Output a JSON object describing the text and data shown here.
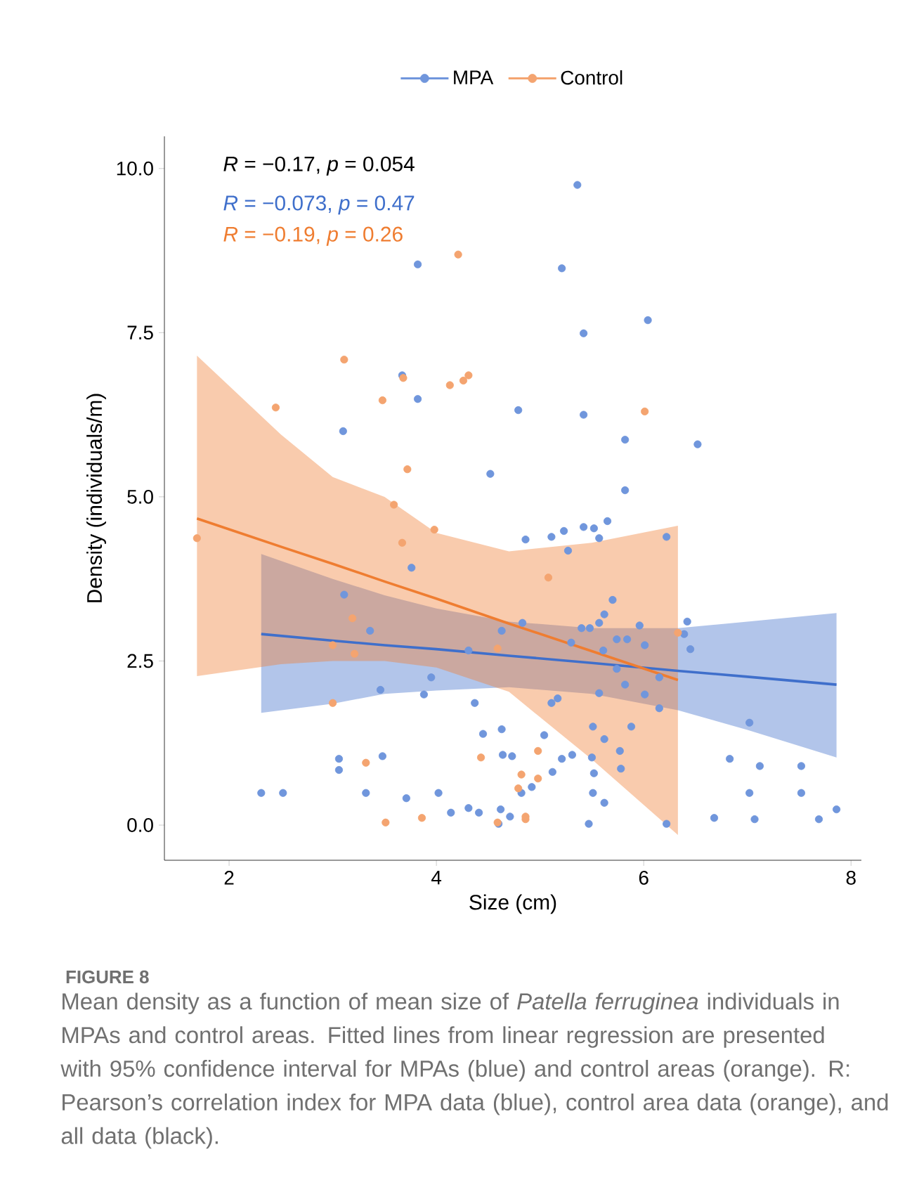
{
  "chart_data": {
    "type": "scatter",
    "xlabel": "Size (cm)",
    "ylabel": "Density (individuals/m)",
    "xlim": [
      1.376,
      8.1
    ],
    "ylim": [
      -0.535,
      10.49
    ],
    "xticks": [
      2,
      4,
      6,
      8
    ],
    "yticks": [
      {
        "value": 0,
        "label": "0.0"
      },
      {
        "value": 2.5,
        "label": "2.5"
      },
      {
        "value": 5,
        "label": "5.0"
      },
      {
        "value": 7.5,
        "label": "7.5"
      },
      {
        "value": 10,
        "label": "10.0"
      }
    ],
    "legend": "top",
    "series": [
      {
        "name": "MPA",
        "marker": "circle",
        "color": "#7096dc",
        "x": [
          5.36,
          5.21,
          3.82,
          3.67,
          3.82,
          3.1,
          4.52,
          5.42,
          6.04,
          4.79,
          5.42,
          5.82,
          6.52,
          5.82,
          3.76,
          3.11,
          3.36,
          3.95,
          4.31,
          4.63,
          3.46,
          3.88,
          4.37,
          4.45,
          4.63,
          3.06,
          3.06,
          3.48,
          4.64,
          2.31,
          2.52,
          3.32,
          3.71,
          4.02,
          4.14,
          4.31,
          4.41,
          4.62,
          4.6,
          4.86,
          5.11,
          5.23,
          5.42,
          5.52,
          5.65,
          5.57,
          5.27,
          6.22,
          5.7,
          5.62,
          5.57,
          5.48,
          5.4,
          5.96,
          4.83,
          5.74,
          5.84,
          6.01,
          6.42,
          6.39,
          6.45,
          5.3,
          5.61,
          5.74,
          6.15,
          5.82,
          5.57,
          6.01,
          5.11,
          5.17,
          6.15,
          7.02,
          5.51,
          5.88,
          5.62,
          5.77,
          5.78,
          5.04,
          4.73,
          5.21,
          5.31,
          5.5,
          5.52,
          5.12,
          4.92,
          4.82,
          5.51,
          5.62,
          4.71,
          5.47,
          6.22,
          6.83,
          7.12,
          7.52,
          7.02,
          7.52,
          6.68,
          7.07,
          7.69,
          7.86
        ],
        "values": [
          9.75,
          8.48,
          8.54,
          6.85,
          6.49,
          6.0,
          5.35,
          7.49,
          7.69,
          6.32,
          6.25,
          5.87,
          5.8,
          5.1,
          3.92,
          3.51,
          2.96,
          2.25,
          2.66,
          2.96,
          2.06,
          1.99,
          1.86,
          1.39,
          1.46,
          1.01,
          0.84,
          1.05,
          1.07,
          0.49,
          0.49,
          0.49,
          0.41,
          0.49,
          0.19,
          0.26,
          0.19,
          0.24,
          0.02,
          4.35,
          4.39,
          4.48,
          4.54,
          4.52,
          4.63,
          4.37,
          4.18,
          4.39,
          3.43,
          3.21,
          3.08,
          3.0,
          3.0,
          3.04,
          3.08,
          2.83,
          2.83,
          2.74,
          3.1,
          2.91,
          2.68,
          2.78,
          2.66,
          2.38,
          2.25,
          2.14,
          2.01,
          1.99,
          1.86,
          1.93,
          1.78,
          1.56,
          1.5,
          1.5,
          1.31,
          1.13,
          0.86,
          1.37,
          1.05,
          1.01,
          1.07,
          1.03,
          0.79,
          0.81,
          0.58,
          0.49,
          0.49,
          0.34,
          0.13,
          0.02,
          0.02,
          1.01,
          0.9,
          0.9,
          0.49,
          0.49,
          0.11,
          0.09,
          0.09,
          0.24
        ]
      },
      {
        "name": "Control",
        "marker": "circle",
        "color": "#f4a470",
        "x": [
          4.21,
          3.11,
          3.68,
          4.13,
          4.26,
          4.31,
          3.48,
          2.45,
          3.72,
          6.01,
          1.69,
          3.59,
          3.98,
          3.67,
          3.19,
          3.0,
          3.21,
          4.59,
          3.0,
          3.32,
          4.43,
          3.51,
          3.86,
          4.59,
          5.08,
          6.33,
          4.98,
          4.82,
          4.98,
          4.79,
          4.86,
          4.86
        ],
        "values": [
          8.69,
          7.09,
          6.81,
          6.7,
          6.77,
          6.85,
          6.47,
          6.36,
          5.42,
          6.3,
          4.37,
          4.88,
          4.5,
          4.3,
          3.15,
          2.74,
          2.61,
          2.69,
          1.86,
          0.95,
          1.03,
          0.04,
          0.11,
          0.04,
          3.77,
          2.93,
          1.13,
          0.77,
          0.71,
          0.56,
          0.13,
          0.09
        ]
      },
      {
        "type": "line",
        "marker": "none",
        "color": "#3f6fcb",
        "x": [
          2.31,
          3.0,
          3.5,
          4.0,
          4.7,
          5.5,
          6.33,
          7.0,
          7.86
        ],
        "values": [
          2.91,
          2.81,
          2.74,
          2.68,
          2.58,
          2.47,
          2.35,
          2.26,
          2.14
        ],
        "lower": [
          1.71,
          1.85,
          2.0,
          2.05,
          2.1,
          2.0,
          1.75,
          1.45,
          1.03
        ],
        "upper": [
          4.13,
          3.75,
          3.5,
          3.3,
          3.1,
          3.0,
          3.0,
          3.1,
          3.23
        ]
      },
      {
        "type": "line",
        "marker": "none",
        "color": "#ef7d31",
        "x": [
          1.69,
          2.5,
          3.0,
          3.5,
          4.0,
          4.7,
          5.5,
          6.33
        ],
        "values": [
          4.67,
          4.24,
          3.98,
          3.71,
          3.45,
          3.07,
          2.65,
          2.21
        ],
        "lower": [
          2.27,
          2.45,
          2.5,
          2.5,
          2.4,
          2.03,
          1.0,
          -0.15
        ],
        "upper": [
          7.15,
          5.95,
          5.3,
          5.0,
          4.45,
          4.17,
          4.3,
          4.56
        ]
      }
    ],
    "annotations": [
      "*R* = −0.17, *p* = 0.054",
      "*R* = −0.073, *p* = 0.47",
      "*R* = −0.19, *p* = 0.26",
      "FIGURE 8",
      "Mean density as a function of mean size of *Patella ferruginea* individuals in MPAs and control areas. Fitted lines from linear regression are presented with 95% confidence interval for MPAs (blue) and control areas (orange). R: Pearson’s correlation index for MPA data (blue), control area data (orange), and all data (black)."
    ]
  }
}
